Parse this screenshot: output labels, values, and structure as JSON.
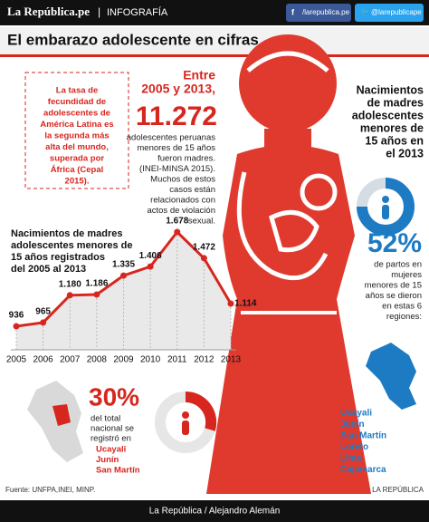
{
  "header": {
    "brand": "La República.pe",
    "section": "INFOGRAFÍA",
    "facebook": "/larepublica.pe",
    "twitter": "@larepublicape"
  },
  "title": "El embarazo adolescente en cifras",
  "note": [
    "La tasa de",
    "fecundidad de",
    "adolescentes de",
    "América Latina es",
    "la segunda más",
    "alta del mundo,",
    "superada por",
    "África (Cepal",
    "2015)."
  ],
  "stat": {
    "intro": [
      "Entre",
      "2005 y 2013,"
    ],
    "number": "11.272",
    "text": [
      "adolescentes peruanas",
      "menores de 15 años",
      "fueron madres.",
      "(INEI-MINSA 2015).",
      "Muchos de estos",
      "casos están",
      "relacionados con",
      "actos de violación",
      "sexual."
    ]
  },
  "line_chart": {
    "type": "line",
    "title": [
      "Nacimientos de madres",
      "adolescentes menores de",
      "15 años registrados",
      "del 2005 al 2013"
    ],
    "categories": [
      "2005",
      "2006",
      "2007",
      "2008",
      "2009",
      "2010",
      "2011",
      "2012",
      "2013"
    ],
    "values": [
      936,
      965,
      1180,
      1186,
      1335,
      1406,
      1678,
      1472,
      1114
    ],
    "value_labels": [
      "936",
      "965",
      "1.180",
      "1.186",
      "1.335",
      "1.406",
      "1.678",
      "1.472",
      "1.114"
    ],
    "color": "#d7261e"
  },
  "right": {
    "title": [
      "Nacimientos",
      "de madres",
      "adolescentes",
      "menores de",
      "15 años en",
      "el 2013"
    ],
    "percent": "52%",
    "text": [
      "de partos en",
      "mujeres",
      "menores de 15",
      "años se dieron",
      "en estas 6",
      "regiones:"
    ],
    "regions": [
      "Ucayali",
      "Junín",
      "San Martín",
      "Loreto",
      "Lima",
      "Cajamarca"
    ]
  },
  "bottom": {
    "percent": "30%",
    "text": [
      "del total",
      "nacional se",
      "registró en"
    ],
    "regions": [
      "Ucayali",
      "Junín",
      "San Martín"
    ]
  },
  "source": "Fuente: UNFPA,INEI, MINP.",
  "credit": "LA REPÚBLICA",
  "footer": "La República / Alejandro Alemán"
}
